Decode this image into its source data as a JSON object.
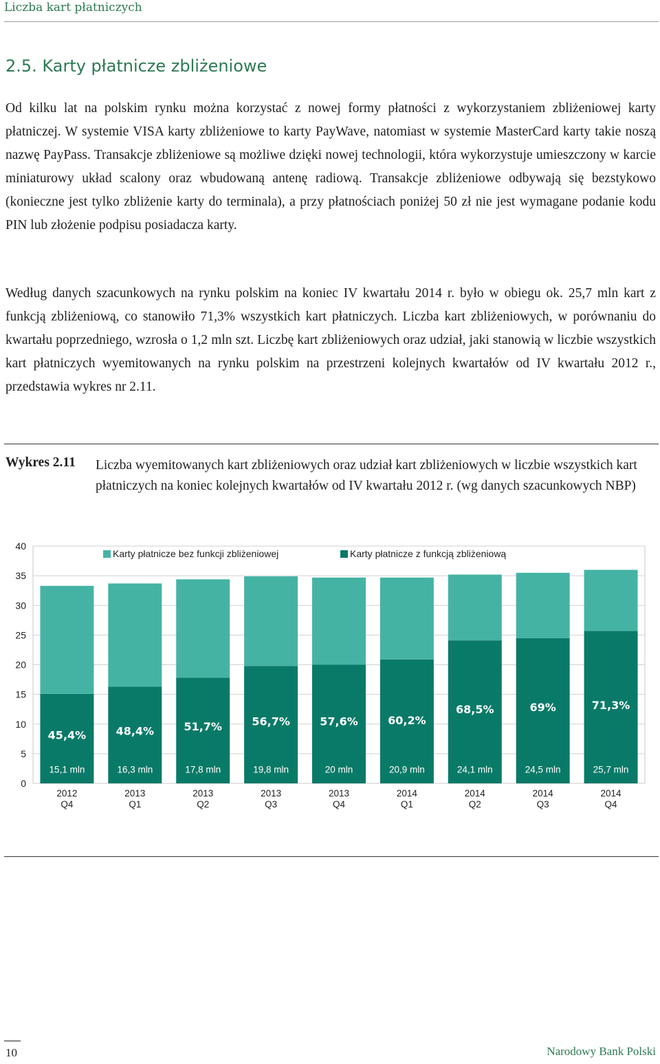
{
  "header": {
    "title": "Liczba kart płatniczych"
  },
  "section": {
    "title": "2.5. Karty płatnicze zbliżeniowe"
  },
  "paragraphs": [
    "Od kilku lat na polskim rynku można korzystać z nowej formy płatności z wykorzystaniem zbliżeniowej karty płatniczej. W systemie VISA karty zbliżeniowe to karty PayWave, natomiast w systemie MasterCard karty takie noszą nazwę PayPass. Transakcje zbliżeniowe są możliwe dzięki nowej technologii, która wykorzystuje umieszczony w karcie miniaturowy układ scalony oraz wbudowaną antenę radiową. Transakcje zbliżeniowe odbywają się bezstykowo (konieczne jest tylko zbliżenie karty do terminala), a przy płatnościach poniżej 50 zł nie jest wymagane podanie kodu PIN lub złożenie podpisu posiadacza karty.",
    "Według danych szacunkowych na rynku polskim na koniec IV kwartału 2014 r. było w obiegu ok. 25,7 mln kart z funkcją zbliżeniową, co stanowiło 71,3% wszystkich kart płatniczych. Liczba kart zbliżeniowych, w porównaniu do kwartału poprzedniego, wzrosła o 1,2 mln szt. Liczbę kart zbliżeniowych oraz udział, jaki stanowią w liczbie wszystkich kart płatniczych wyemitowanych na rynku polskim na przestrzeni kolejnych kwartałów od IV kwartału 2012 r., przedstawia wykres nr 2.11."
  ],
  "caption": {
    "label": "Wykres 2.",
    "number": "11",
    "text": "Liczba wyemitowanych kart zbliżeniowych oraz udział kart zbliżeniowych w liczbie wszystkich kart płatniczych na koniec kolejnych kwartałów od IV kwartału 2012 r. (wg danych szacunkowych NBP)"
  },
  "chart_data": {
    "type": "bar",
    "stacked": true,
    "categories": [
      [
        "2012",
        "Q4"
      ],
      [
        "2013",
        "Q1"
      ],
      [
        "2013",
        "Q2"
      ],
      [
        "2013",
        "Q3"
      ],
      [
        "2013",
        "Q4"
      ],
      [
        "2014",
        "Q1"
      ],
      [
        "2014",
        "Q2"
      ],
      [
        "2014",
        "Q3"
      ],
      [
        "2014",
        "Q4"
      ]
    ],
    "series": [
      {
        "name": "Karty płatnicze z funkcją zbliżeniową",
        "color": "#0a7a68",
        "values": [
          15.1,
          16.3,
          17.8,
          19.8,
          20.0,
          20.9,
          24.1,
          24.5,
          25.7
        ],
        "labels": [
          "15,1 mln",
          "16,3 mln",
          "17,8 mln",
          "19,8 mln",
          "20 mln",
          "20,9 mln",
          "24,1 mln",
          "24,5 mln",
          "25,7 mln"
        ]
      },
      {
        "name": "Karty płatnicze bez funkcji zbliżeniowej",
        "color": "#45b3a4",
        "values": [
          18.2,
          17.4,
          16.6,
          15.1,
          14.7,
          13.8,
          11.1,
          11.0,
          10.3
        ]
      }
    ],
    "share_labels": [
      "45,4%",
      "48,4%",
      "51,7%",
      "56,7%",
      "57,6%",
      "60,2%",
      "68,5%",
      "69%",
      "71,3%"
    ],
    "share_label_y": [
      7.5,
      8.2,
      8.9,
      9.8,
      9.8,
      10.0,
      11.8,
      12.2,
      12.5
    ],
    "yticks": [
      0,
      5,
      10,
      15,
      20,
      25,
      30,
      35,
      40
    ],
    "ylim": [
      0,
      40
    ],
    "grid": true,
    "legend": "top"
  },
  "footer": {
    "page": "10",
    "publisher": "Narodowy Bank Polski"
  }
}
